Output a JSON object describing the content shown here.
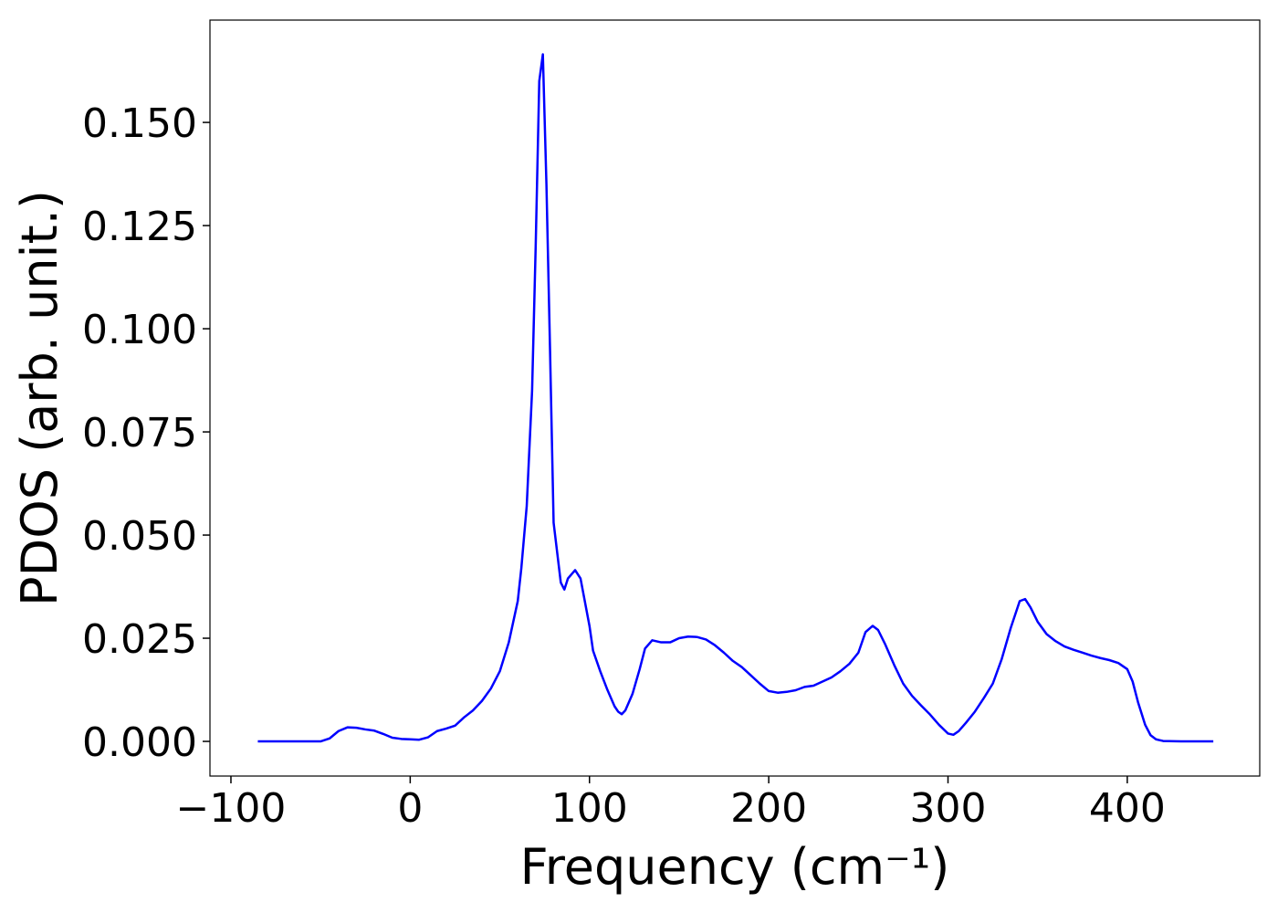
{
  "chart_data": {
    "type": "line",
    "xlabel": "Frequency (cm⁻¹)",
    "ylabel": "PDOS (arb. unit.)",
    "color": "#0000ff",
    "x": [
      -85,
      -50,
      -45,
      -40,
      -35,
      -30,
      -25,
      -20,
      -15,
      -10,
      -5,
      0,
      5,
      10,
      15,
      20,
      25,
      30,
      35,
      40,
      45,
      50,
      55,
      60,
      62,
      65,
      68,
      70,
      72,
      74,
      76,
      78,
      80,
      84,
      86,
      88,
      92,
      95,
      100,
      102,
      106,
      110,
      114,
      116,
      118,
      120,
      124,
      128,
      131,
      135,
      140,
      145,
      150,
      155,
      160,
      165,
      170,
      175,
      180,
      185,
      190,
      195,
      200,
      205,
      210,
      215,
      220,
      225,
      230,
      235,
      240,
      245,
      250,
      254,
      258,
      261,
      265,
      270,
      275,
      280,
      285,
      290,
      295,
      300,
      303,
      306,
      310,
      315,
      320,
      325,
      330,
      335,
      340,
      343,
      346,
      350,
      355,
      360,
      365,
      370,
      375,
      380,
      385,
      390,
      395,
      400,
      403,
      406,
      410,
      413,
      416,
      420,
      430,
      448
    ],
    "values": [
      0,
      0,
      0.0007,
      0.0025,
      0.0034,
      0.0033,
      0.0029,
      0.0026,
      0.0018,
      0.0009,
      0.0006,
      0.0005,
      0.0004,
      0.001,
      0.0025,
      0.0031,
      0.0038,
      0.0058,
      0.0075,
      0.0098,
      0.0128,
      0.017,
      0.024,
      0.034,
      0.042,
      0.057,
      0.085,
      0.12,
      0.16,
      0.1665,
      0.135,
      0.095,
      0.053,
      0.0385,
      0.0368,
      0.0395,
      0.0415,
      0.0395,
      0.028,
      0.022,
      0.017,
      0.0125,
      0.0085,
      0.0072,
      0.0066,
      0.0075,
      0.0115,
      0.0175,
      0.0225,
      0.0245,
      0.024,
      0.024,
      0.025,
      0.0254,
      0.0253,
      0.0247,
      0.0233,
      0.0215,
      0.0195,
      0.018,
      0.016,
      0.014,
      0.0122,
      0.0118,
      0.012,
      0.0124,
      0.0132,
      0.0135,
      0.0145,
      0.0155,
      0.017,
      0.0188,
      0.0215,
      0.0265,
      0.028,
      0.027,
      0.0235,
      0.0185,
      0.014,
      0.011,
      0.0087,
      0.0065,
      0.004,
      0.0019,
      0.0016,
      0.0025,
      0.0045,
      0.0072,
      0.0105,
      0.014,
      0.02,
      0.0275,
      0.034,
      0.0345,
      0.0325,
      0.029,
      0.026,
      0.0243,
      0.023,
      0.0222,
      0.0215,
      0.0208,
      0.0202,
      0.0197,
      0.019,
      0.0175,
      0.0145,
      0.0095,
      0.004,
      0.0015,
      0.0005,
      0.0001,
      0,
      0
    ],
    "xlim": [
      -111.7,
      473.9
    ],
    "ylim": [
      -0.0084,
      0.1748
    ],
    "xticks": [
      {
        "value": -100,
        "label": "−100"
      },
      0,
      100,
      200,
      300,
      400
    ],
    "yticks": [
      {
        "value": 0,
        "label": "0.000"
      },
      {
        "value": 0.025,
        "label": "0.025"
      },
      {
        "value": 0.05,
        "label": "0.050"
      },
      {
        "value": 0.075,
        "label": "0.075"
      },
      {
        "value": 0.1,
        "label": "0.100"
      },
      {
        "value": 0.125,
        "label": "0.125"
      },
      {
        "value": 0.15,
        "label": "0.150"
      }
    ]
  }
}
